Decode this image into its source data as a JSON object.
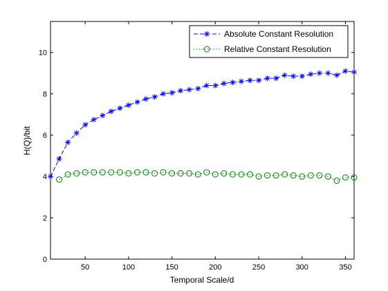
{
  "chart_data": {
    "type": "line",
    "xlabel": "Temporal Scale/d",
    "ylabel": "H(Q)/bit",
    "xlim": [
      10,
      360
    ],
    "ylim": [
      0,
      11.5
    ],
    "xticks": [
      50,
      100,
      150,
      200,
      250,
      300,
      350
    ],
    "yticks": [
      0,
      2,
      4,
      6,
      8,
      10
    ],
    "grid": false,
    "legend_position": "top-right",
    "x": [
      10,
      20,
      30,
      40,
      50,
      60,
      70,
      80,
      90,
      100,
      110,
      120,
      130,
      140,
      150,
      160,
      170,
      180,
      190,
      200,
      210,
      220,
      230,
      240,
      250,
      260,
      270,
      280,
      290,
      300,
      310,
      320,
      330,
      340,
      350,
      360
    ],
    "series": [
      {
        "name": "Absolute Constant Resolution",
        "color": "#0000ff",
        "line_style": "dashed",
        "marker": "asterisk",
        "values": [
          4.0,
          4.85,
          5.65,
          6.1,
          6.5,
          6.75,
          6.95,
          7.15,
          7.3,
          7.45,
          7.6,
          7.75,
          7.85,
          8.0,
          8.05,
          8.15,
          8.2,
          8.25,
          8.4,
          8.4,
          8.5,
          8.55,
          8.6,
          8.65,
          8.65,
          8.75,
          8.75,
          8.9,
          8.85,
          8.85,
          8.95,
          9.0,
          9.0,
          8.9,
          9.1,
          9.05
        ]
      },
      {
        "name": "Relative Constant Resolution",
        "color": "#008000",
        "line_style": "dotted",
        "marker": "circle",
        "values": [
          null,
          3.85,
          4.1,
          4.15,
          4.2,
          4.2,
          4.2,
          4.2,
          4.2,
          4.15,
          4.2,
          4.2,
          4.15,
          4.2,
          4.15,
          4.15,
          4.15,
          4.1,
          4.2,
          4.1,
          4.15,
          4.1,
          4.1,
          4.1,
          4.0,
          4.05,
          4.05,
          4.1,
          4.05,
          4.0,
          4.05,
          4.05,
          4.0,
          3.8,
          3.95,
          3.95
        ]
      }
    ]
  }
}
